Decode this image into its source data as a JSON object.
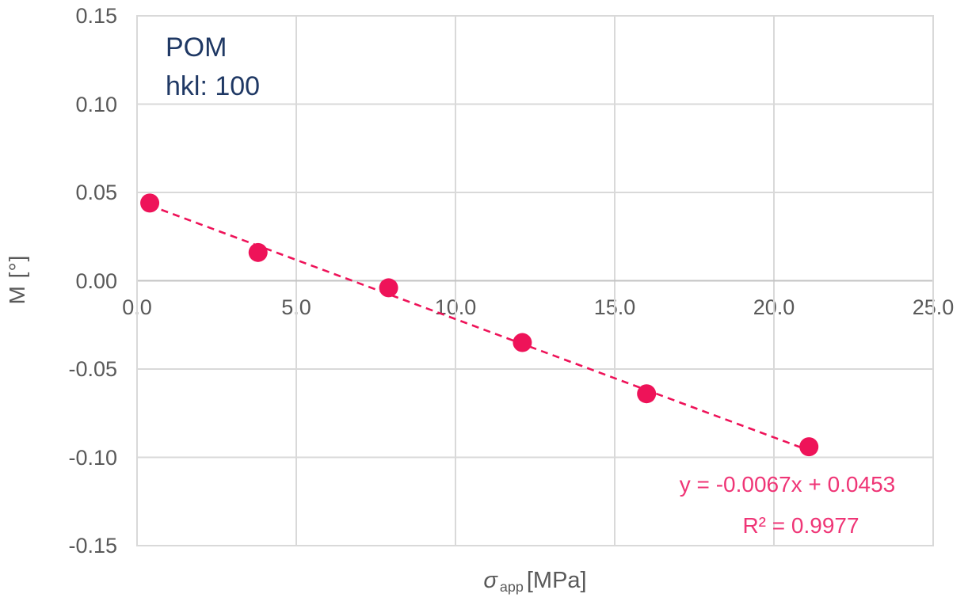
{
  "chart_data": {
    "type": "scatter",
    "title": "",
    "annotation": {
      "line1": "POM",
      "line2": "hkl: 100"
    },
    "ylabel": "M [°]",
    "xlabel": {
      "symbol": "σ",
      "subscript": "app",
      "unit": "[MPa]"
    },
    "xlim": [
      0,
      25
    ],
    "ylim": [
      -0.15,
      0.15
    ],
    "xticks": [
      0,
      5,
      10,
      15,
      20,
      25
    ],
    "xtick_labels": [
      "0.0",
      "5.0",
      "10.0",
      "15.0",
      "20.0",
      "25.0"
    ],
    "yticks": [
      0.15,
      0.1,
      0.05,
      0.0,
      -0.05,
      -0.1,
      -0.15
    ],
    "ytick_labels": [
      "0.15",
      "0.10",
      "0.05",
      "0.00",
      "-0.05",
      "-0.10",
      "-0.15"
    ],
    "grid": true,
    "legend": "none",
    "points": [
      {
        "x": 0.4,
        "y": 0.044
      },
      {
        "x": 3.8,
        "y": 0.016
      },
      {
        "x": 7.9,
        "y": -0.004
      },
      {
        "x": 12.1,
        "y": -0.035
      },
      {
        "x": 16.0,
        "y": -0.064
      },
      {
        "x": 21.1,
        "y": -0.094
      }
    ],
    "trendline": {
      "style": "dashed",
      "slope": -0.0067,
      "intercept": 0.0453,
      "x_start": 0.4,
      "x_end": 21.1
    },
    "equation_label": "y = -0.0067x + 0.0453",
    "r_squared_label": "R² = 0.9977",
    "colors": {
      "marker": "#ee1359",
      "trendline": "#ee1359",
      "equation_text": "#ef3576",
      "tick_text": "#595959",
      "annotation_text": "#1f3864",
      "gridline": "#d9d9d9",
      "zero_axis_line": "#c3c3c3"
    }
  }
}
